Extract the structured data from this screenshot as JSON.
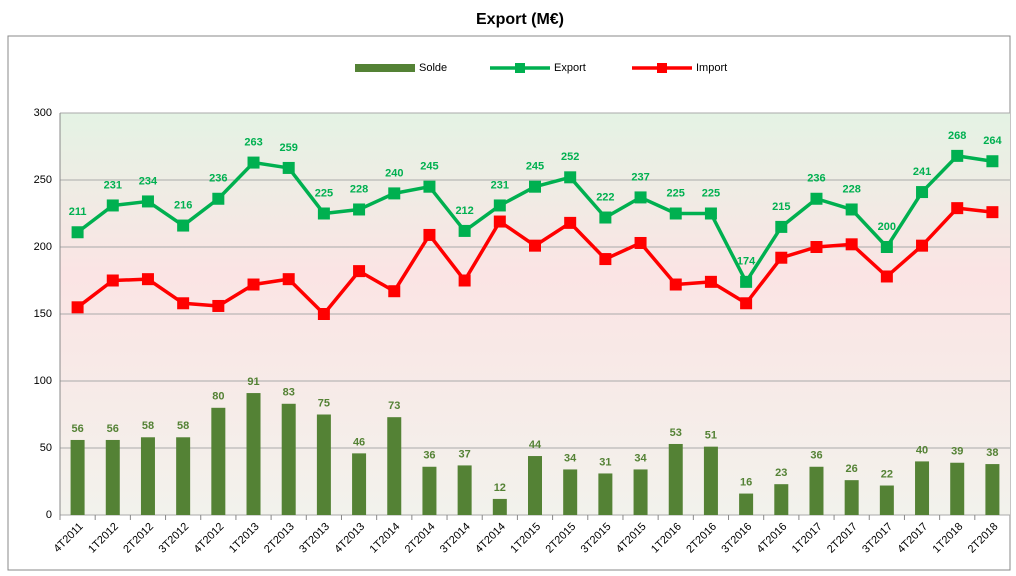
{
  "chart_data": {
    "type": "bar_line",
    "title": "Export (M€)",
    "categories": [
      "4T2011",
      "1T2012",
      "2T2012",
      "3T2012",
      "4T2012",
      "1T2013",
      "2T2013",
      "3T2013",
      "4T2013",
      "1T2014",
      "2T2014",
      "3T2014",
      "4T2014",
      "1T2015",
      "2T2015",
      "3T2015",
      "4T2015",
      "1T2016",
      "2T2016",
      "3T2016",
      "4T2016",
      "1T2017",
      "2T2017",
      "3T2017",
      "4T2017",
      "1T2018",
      "2T2018"
    ],
    "series": [
      {
        "name": "Solde",
        "type": "bar",
        "color": "#548235",
        "label_color": "#548235",
        "values": [
          56,
          56,
          58,
          58,
          80,
          91,
          83,
          75,
          46,
          73,
          36,
          37,
          12,
          44,
          34,
          31,
          34,
          53,
          51,
          16,
          23,
          36,
          26,
          22,
          40,
          39,
          38
        ]
      },
      {
        "name": "Export",
        "type": "line",
        "color": "#00b050",
        "label_color": "#00b050",
        "values": [
          211,
          231,
          234,
          216,
          236,
          263,
          259,
          225,
          228,
          240,
          245,
          212,
          231,
          245,
          252,
          222,
          237,
          225,
          225,
          174,
          215,
          236,
          228,
          200,
          241,
          268,
          264
        ]
      },
      {
        "name": "Import",
        "type": "line",
        "color": "#ff0000",
        "values": [
          155,
          175,
          176,
          158,
          156,
          172,
          176,
          150,
          182,
          167,
          209,
          175,
          219,
          201,
          218,
          191,
          203,
          172,
          174,
          158,
          192,
          200,
          202,
          178,
          201,
          229,
          226
        ]
      }
    ],
    "ylim": [
      0,
      300
    ],
    "yticks": [
      0,
      50,
      100,
      150,
      200,
      250,
      300
    ],
    "grid": true,
    "legend": "top"
  }
}
